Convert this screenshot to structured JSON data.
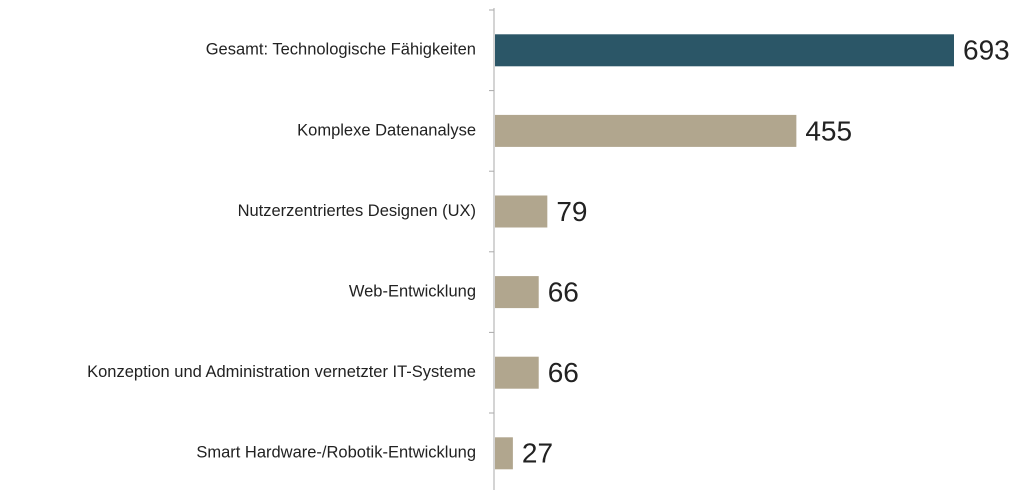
{
  "chart_data": {
    "type": "bar",
    "orientation": "horizontal",
    "categories": [
      "Gesamt: Technologische Fähigkeiten",
      "Komplexe Datenanalyse",
      "Nutzerzentriertes Designen (UX)",
      "Web-Entwicklung",
      "Konzeption und Administration vernetzter IT-Systeme",
      "Smart Hardware-/Robotik-Entwicklung"
    ],
    "values": [
      693,
      455,
      79,
      66,
      66,
      27
    ],
    "colors": [
      "#2b5667",
      "#b1a68e",
      "#b1a68e",
      "#b1a68e",
      "#b1a68e",
      "#b1a68e"
    ]
  }
}
